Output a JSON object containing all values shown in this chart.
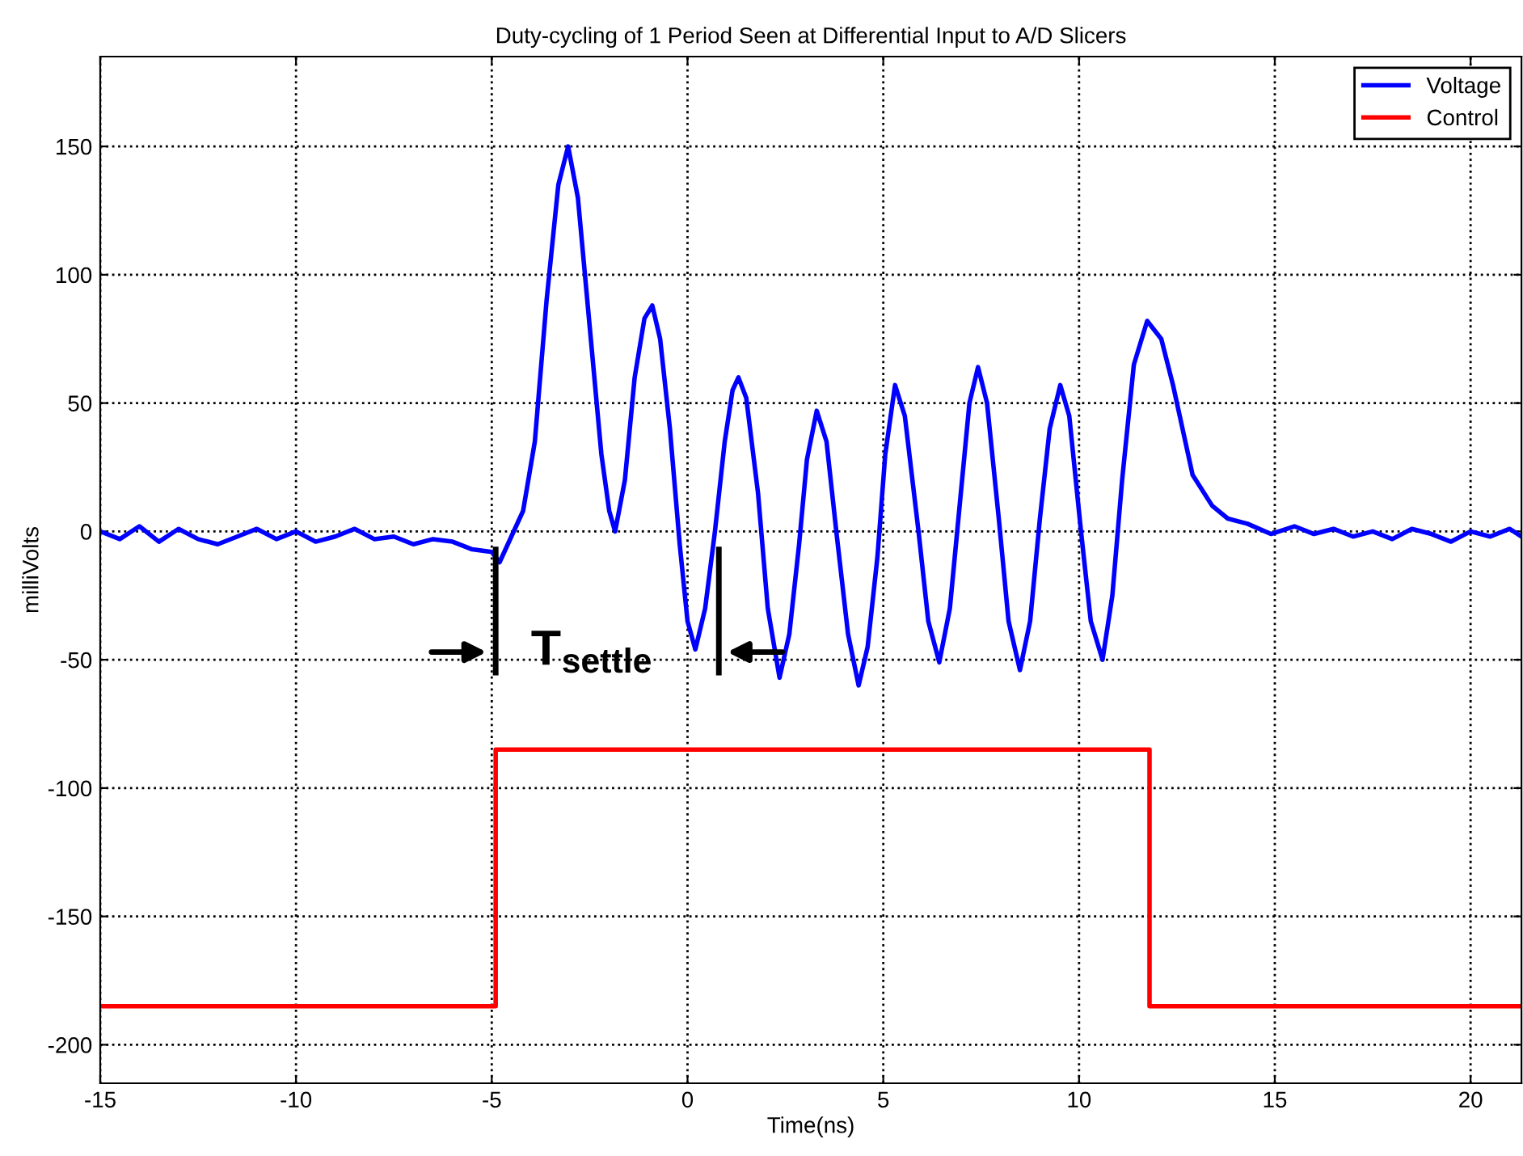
{
  "chart_data": {
    "type": "line",
    "title": "Duty-cycling of 1 Period Seen at Differential Input to A/D Slicers",
    "xlabel": "Time(ns)",
    "ylabel": "milliVolts",
    "xlim": [
      -15,
      21.3
    ],
    "xticks": [
      -15,
      -10,
      -5,
      0,
      5,
      10,
      15,
      20
    ],
    "ylim": [
      -215,
      185
    ],
    "yticks": [
      -200,
      -150,
      -100,
      -50,
      0,
      50,
      100,
      150
    ],
    "grid": true,
    "legend": "top right",
    "line_style": "solid",
    "marker": "none",
    "ref_lines": [
      {
        "axis": "x",
        "value": -4.9,
        "label": "T$_{settle}$",
        "color": "#000000",
        "line_style": "solid"
      },
      {
        "axis": "x",
        "value": 0.8,
        "color": "#000000",
        "line_style": "solid"
      }
    ],
    "series": [
      {
        "name": "Voltage",
        "color": "#0000ff",
        "x": [
          -15,
          -14.5,
          -14,
          -13.5,
          -13,
          -12.5,
          -12,
          -11.5,
          -11,
          -10.5,
          -10,
          -9.5,
          -9,
          -8.5,
          -8,
          -7.5,
          -7,
          -6.5,
          -6,
          -5.5,
          -5,
          -4.8,
          -4.5,
          -4.2,
          -3.9,
          -3.6,
          -3.3,
          -3.05,
          -2.8,
          -2.5,
          -2.2,
          -2.0,
          -1.85,
          -1.6,
          -1.35,
          -1.1,
          -0.9,
          -0.7,
          -0.45,
          -0.2,
          0.0,
          0.2,
          0.45,
          0.7,
          0.95,
          1.15,
          1.3,
          1.5,
          1.8,
          2.05,
          2.35,
          2.6,
          2.85,
          3.05,
          3.3,
          3.55,
          3.8,
          4.1,
          4.37,
          4.6,
          4.85,
          5.05,
          5.3,
          5.55,
          5.9,
          6.15,
          6.43,
          6.7,
          6.95,
          7.2,
          7.42,
          7.65,
          7.95,
          8.2,
          8.49,
          8.75,
          9.0,
          9.25,
          9.52,
          9.75,
          10.05,
          10.3,
          10.6,
          10.85,
          11.1,
          11.4,
          11.74,
          12.1,
          12.4,
          12.9,
          13.4,
          13.8,
          14.3,
          14.9,
          15.5,
          16,
          16.5,
          17,
          17.5,
          18,
          18.5,
          19,
          19.5,
          20,
          20.5,
          21,
          21.3
        ],
        "values": [
          0,
          -3,
          2,
          -4,
          1,
          -3,
          -5,
          -2,
          1,
          -3,
          0,
          -4,
          -2,
          1,
          -3,
          -2,
          -5,
          -3,
          -4,
          -7,
          -8,
          -12,
          -2,
          8,
          35,
          90,
          135,
          150,
          130,
          80,
          30,
          8,
          0,
          20,
          60,
          83,
          88,
          75,
          40,
          -5,
          -35,
          -46,
          -30,
          0,
          35,
          55,
          60,
          52,
          15,
          -30,
          -57,
          -40,
          -5,
          28,
          47,
          35,
          0,
          -40,
          -60,
          -45,
          -10,
          30,
          57,
          45,
          0,
          -35,
          -51,
          -30,
          10,
          50,
          64,
          50,
          5,
          -35,
          -54,
          -35,
          5,
          40,
          57,
          45,
          0,
          -35,
          -50,
          -25,
          20,
          65,
          82,
          75,
          57,
          22,
          10,
          5,
          3,
          -1,
          2,
          -1,
          1,
          -2,
          0,
          -3,
          1,
          -1,
          -4,
          0,
          -2,
          1,
          -2
        ]
      },
      {
        "name": "Control",
        "color": "#ff0000",
        "type": "step",
        "x": [
          -15,
          -4.9,
          11.8,
          21.3
        ],
        "values": [
          -185,
          -85,
          -185,
          -185
        ]
      }
    ]
  }
}
